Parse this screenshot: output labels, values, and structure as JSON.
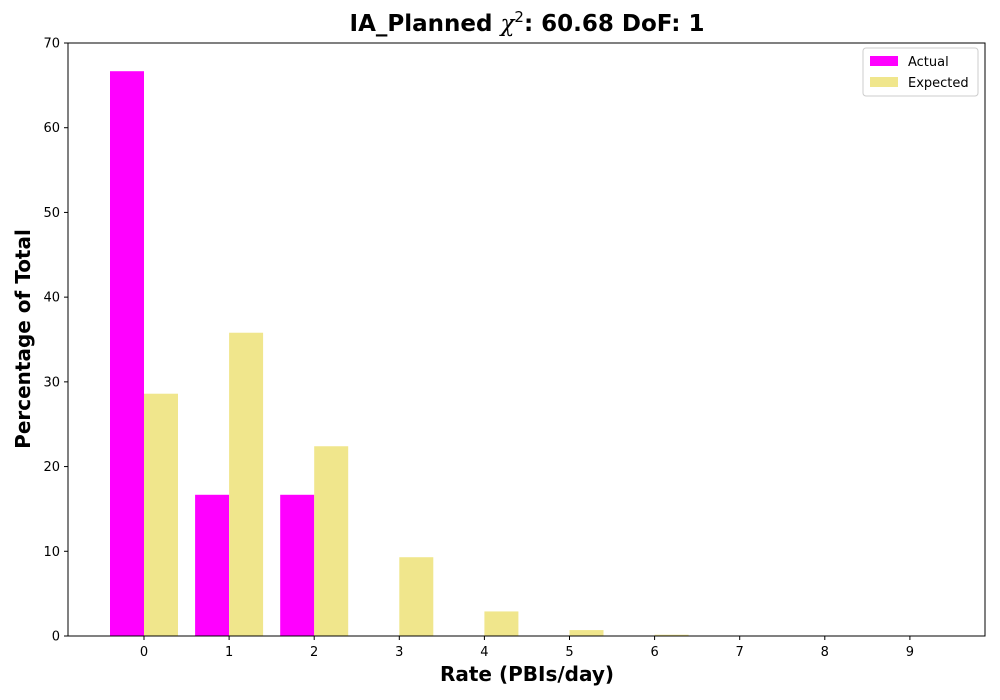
{
  "chart_data": {
    "type": "bar",
    "title": {
      "prefix": "IA_Planned ",
      "symbol": "χ",
      "superscript": "2",
      "suffix": ": 60.68 DoF: 1"
    },
    "xlabel": "Rate (PBIs/day)",
    "ylabel": "Percentage of Total",
    "categories": [
      "0",
      "1",
      "2",
      "3",
      "4",
      "5",
      "6",
      "7",
      "8",
      "9"
    ],
    "series": [
      {
        "name": "Actual",
        "color": "#ff00ff",
        "values": [
          66.67,
          16.67,
          16.67,
          0,
          0,
          0,
          0,
          0,
          0,
          0
        ]
      },
      {
        "name": "Expected",
        "color": "#f0e68c",
        "values": [
          28.6,
          35.8,
          22.4,
          9.3,
          2.9,
          0.7,
          0.15,
          0.03,
          0.005,
          0.0008
        ]
      }
    ],
    "ylim": [
      0,
      70
    ],
    "yticks": [
      0,
      10,
      20,
      30,
      40,
      50,
      60,
      70
    ],
    "legend": "top-right",
    "grid": false
  }
}
